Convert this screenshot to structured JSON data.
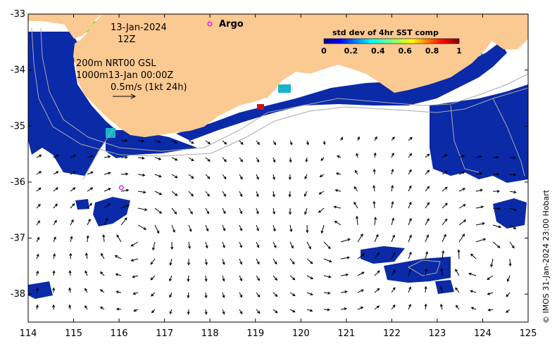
{
  "map": {
    "lon_range": [
      114,
      125
    ],
    "lat_range": [
      -38.5,
      -33
    ],
    "x_ticks": [
      "114",
      "115",
      "116",
      "117",
      "118",
      "119",
      "120",
      "121",
      "122",
      "123",
      "124",
      "125"
    ],
    "y_ticks": [
      "-33",
      "-34",
      "-35",
      "-36",
      "-37",
      "-38"
    ],
    "land_color": "#fbc992",
    "ocean_color": "#ffffff"
  },
  "annotations": {
    "date": "13-Jan-2024",
    "hour": "12Z",
    "line1": "200m  NRT00 GSL",
    "line2": "1000m13-Jan 00:00Z",
    "scale": "0.5m/s (1kt 24h)",
    "argo_label": "Argo",
    "copyright": "© IMOS 31-Jan-2024 23:00 Hobart"
  },
  "colorbar": {
    "title": "std dev of 4hr SST comp",
    "ticks": [
      "0",
      "0.2",
      "0.4",
      "0.6",
      "0.8",
      "1"
    ],
    "colors": [
      "#00007f",
      "#0000ff",
      "#007fff",
      "#00ffff",
      "#7fff7f",
      "#ffff00",
      "#ff7f00",
      "#ff0000",
      "#7f0000"
    ]
  },
  "argo_floats": [
    {
      "lon": 116.05,
      "lat": -36.1
    }
  ],
  "argo_color": "#ff00ff"
}
